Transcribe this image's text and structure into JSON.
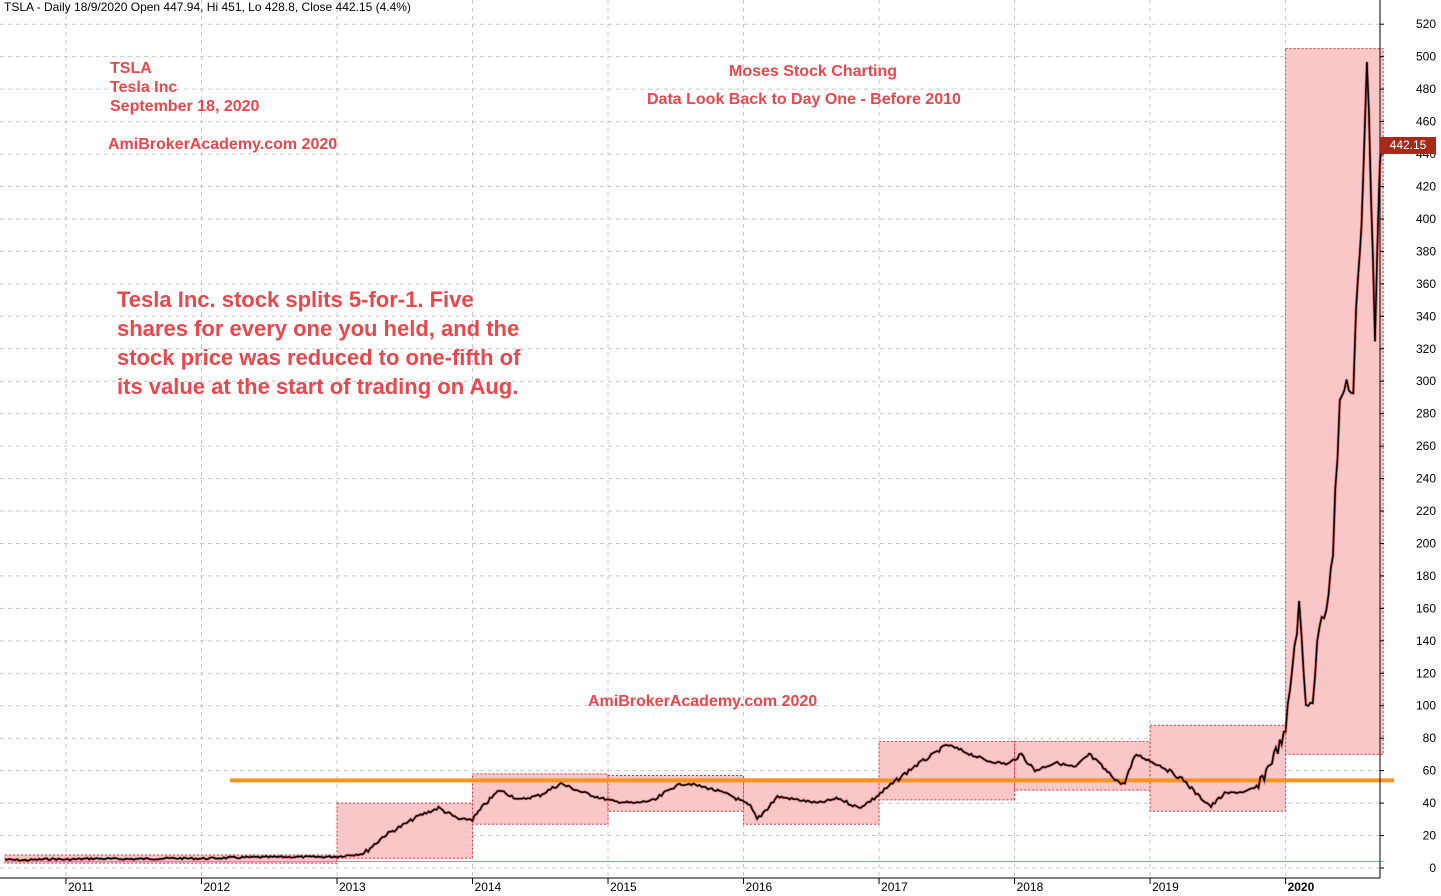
{
  "header": {
    "title": "TSLA - Daily 18/9/2020 Open 447.94, Hi 451, Lo 428.8, Close 442.15 (4.4%)"
  },
  "annotations": {
    "ticker": "TSLA",
    "company": "Tesla Inc",
    "date": "September 18, 2020",
    "site_top": "AmiBrokerAcademy.com  2020",
    "moses": "Moses Stock Charting",
    "lookback": "Data Look Back to Day One -  Before 2010",
    "split_note": "Tesla Inc. stock splits 5-for-1.  Five\nshares for every one you held, and the\nstock price was reduced to one-fifth of\nits value at the start of trading on Aug.",
    "site_mid": "AmiBrokerAcademy.com  2020",
    "last_price": "442.15"
  },
  "colors": {
    "box_fill": "#f9c4c4",
    "box_stroke": "#d9363e",
    "annotation_text": "#e8474c",
    "support_line": "#f7931e",
    "price_line": "#000000",
    "grid": "#dcdcdc",
    "price_tag": "#a52a1a"
  },
  "chart_data": {
    "type": "line",
    "title": "TSLA - Daily 18/9/2020 Open 447.94, Hi 451, Lo 428.8, Close 442.15 (4.4%)",
    "xlabel": "",
    "ylabel": "",
    "ylim": [
      0,
      530
    ],
    "xlim": [
      2010.55,
      2020.8
    ],
    "yticks": [
      0,
      20,
      40,
      60,
      80,
      100,
      120,
      140,
      160,
      180,
      200,
      220,
      240,
      260,
      280,
      300,
      320,
      340,
      360,
      380,
      400,
      420,
      440,
      460,
      480,
      500,
      520
    ],
    "xticks": [
      {
        "label": "2011",
        "x": 2011.0
      },
      {
        "label": "2012",
        "x": 2012.0
      },
      {
        "label": "2013",
        "x": 2013.0
      },
      {
        "label": "2014",
        "x": 2014.0
      },
      {
        "label": "2015",
        "x": 2015.0
      },
      {
        "label": "2016",
        "x": 2016.0
      },
      {
        "label": "2017",
        "x": 2017.0
      },
      {
        "label": "2018",
        "x": 2018.0
      },
      {
        "label": "2019",
        "x": 2019.0
      },
      {
        "label": "2020",
        "x": 2020.0
      }
    ],
    "grid": true,
    "series": [
      {
        "x": [
          2010.55,
          2010.7,
          2010.9,
          2011.0,
          2011.2,
          2011.5,
          2011.8,
          2012.0,
          2012.3,
          2012.6,
          2012.9,
          2013.0,
          2013.2,
          2013.35,
          2013.5,
          2013.6,
          2013.75,
          2013.9,
          2014.0,
          2014.1,
          2014.2,
          2014.35,
          2014.5,
          2014.65,
          2014.8,
          2014.95,
          2015.05,
          2015.2,
          2015.35,
          2015.5,
          2015.6,
          2015.75,
          2015.9,
          2016.05,
          2016.1,
          2016.25,
          2016.4,
          2016.55,
          2016.7,
          2016.85,
          2016.95,
          2017.1,
          2017.25,
          2017.4,
          2017.5,
          2017.65,
          2017.8,
          2017.95,
          2018.05,
          2018.15,
          2018.3,
          2018.45,
          2018.55,
          2018.7,
          2018.8,
          2018.9,
          2019.0,
          2019.1,
          2019.25,
          2019.35,
          2019.45,
          2019.55,
          2019.7,
          2019.8,
          2019.9,
          2020.0,
          2020.05,
          2020.1,
          2020.15,
          2020.2,
          2020.25,
          2020.3,
          2020.35,
          2020.4,
          2020.45,
          2020.5,
          2020.52,
          2020.56,
          2020.6,
          2020.63,
          2020.66,
          2020.69,
          2020.7,
          2020.72
        ],
        "values": [
          5.2,
          4.8,
          5.6,
          5.2,
          5.8,
          5.5,
          6.0,
          5.8,
          6.5,
          6.8,
          6.8,
          7.0,
          9.0,
          20.0,
          27.0,
          32.0,
          37.0,
          30.0,
          30.0,
          40.0,
          48.0,
          42.0,
          45.0,
          52.0,
          47.0,
          43.0,
          41.0,
          40.0,
          42.0,
          51.0,
          52.0,
          49.0,
          45.0,
          38.0,
          30.0,
          44.0,
          42.0,
          40.0,
          43.0,
          37.0,
          42.0,
          52.0,
          62.0,
          70.0,
          76.0,
          71.0,
          66.0,
          64.0,
          70.0,
          60.0,
          65.0,
          62.0,
          70.0,
          58.0,
          51.0,
          70.0,
          66.0,
          62.0,
          54.0,
          45.0,
          38.0,
          46.0,
          47.0,
          50.0,
          67.0,
          83.0,
          125.0,
          160.0,
          100.0,
          105.0,
          150.0,
          160.0,
          200.0,
          285.0,
          300.0,
          290.0,
          340.0,
          400.0,
          500.0,
          420.0,
          330.0,
          420.0,
          440.0,
          442.15
        ]
      }
    ],
    "range_boxes": [
      {
        "x0": 2010.55,
        "x1": 2013.0,
        "y0": 3,
        "y1": 8
      },
      {
        "x0": 2013.0,
        "x1": 2014.0,
        "y0": 6,
        "y1": 40
      },
      {
        "x0": 2014.0,
        "x1": 2015.0,
        "y0": 27,
        "y1": 58
      },
      {
        "x0": 2015.0,
        "x1": 2016.0,
        "y0": 35,
        "y1": 57
      },
      {
        "x0": 2016.0,
        "x1": 2017.0,
        "y0": 27,
        "y1": 55
      },
      {
        "x0": 2017.0,
        "x1": 2018.0,
        "y0": 42,
        "y1": 78
      },
      {
        "x0": 2018.0,
        "x1": 2019.0,
        "y0": 48,
        "y1": 78
      },
      {
        "x0": 2019.0,
        "x1": 2020.0,
        "y0": 35,
        "y1": 88
      },
      {
        "x0": 2020.0,
        "x1": 2020.72,
        "y0": 70,
        "y1": 505
      }
    ],
    "horizontal_lines": [
      {
        "y": 54,
        "x0": 2012.21,
        "x1": 2020.8,
        "style": "thick-orange"
      },
      {
        "y": 4,
        "x0": 2010.55,
        "x1": 2020.72,
        "style": "thin-orange"
      }
    ]
  }
}
